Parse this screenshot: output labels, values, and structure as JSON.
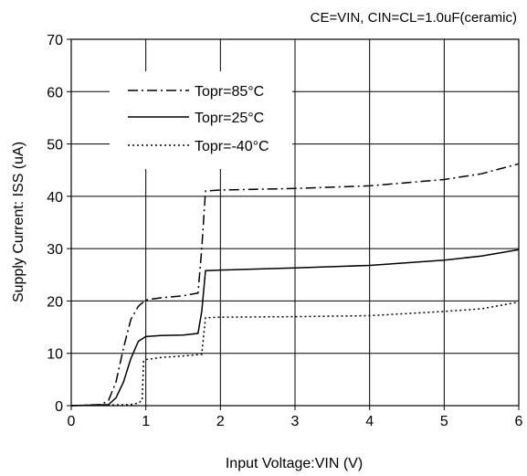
{
  "chart_data": {
    "type": "line",
    "annotation": "CE=VIN, CIN=CL=1.0uF(ceramic)",
    "xlabel": "Input Voltage:VIN (V)",
    "ylabel": "Supply Current: ISS (uA)",
    "xlim": [
      0,
      6
    ],
    "ylim": [
      0,
      70
    ],
    "xticks": [
      0,
      1,
      2,
      3,
      4,
      5,
      6
    ],
    "yticks": [
      0,
      10,
      20,
      30,
      40,
      50,
      60,
      70
    ],
    "grid": true,
    "legend_position": "top-left",
    "series": [
      {
        "name": "Topr=85°C",
        "line_style": "dashdot",
        "x": [
          0,
          0.4,
          0.5,
          0.6,
          0.7,
          0.8,
          0.9,
          1.0,
          1.2,
          1.5,
          1.7,
          1.75,
          1.8,
          2.0,
          3.0,
          4.0,
          5.0,
          5.5,
          6.0
        ],
        "y": [
          0,
          0.2,
          1.0,
          4.5,
          11,
          16.5,
          19,
          20.2,
          20.6,
          21.0,
          21.5,
          30,
          41,
          41.2,
          41.5,
          42.0,
          43.2,
          44.3,
          46.2
        ]
      },
      {
        "name": "Topr=25°C",
        "line_style": "solid",
        "x": [
          0,
          0.5,
          0.6,
          0.7,
          0.8,
          0.9,
          1.0,
          1.2,
          1.5,
          1.7,
          1.75,
          1.8,
          2.0,
          3.0,
          4.0,
          5.0,
          5.5,
          6.0
        ],
        "y": [
          0,
          0.2,
          1.5,
          4.5,
          9.0,
          12.3,
          13.2,
          13.4,
          13.5,
          13.8,
          18,
          25.8,
          25.9,
          26.3,
          26.8,
          27.8,
          28.6,
          29.8
        ]
      },
      {
        "name": "Topr=-40°C",
        "line_style": "dotted",
        "x": [
          0,
          0.8,
          0.9,
          0.95,
          0.97,
          1.0,
          1.2,
          1.5,
          1.75,
          1.8,
          2.0,
          3.0,
          4.0,
          5.0,
          5.5,
          6.0
        ],
        "y": [
          0,
          0.2,
          0.5,
          1.0,
          8.5,
          8.8,
          9.2,
          9.5,
          9.8,
          16.8,
          16.9,
          17.0,
          17.2,
          18.0,
          18.5,
          19.8
        ]
      }
    ]
  }
}
